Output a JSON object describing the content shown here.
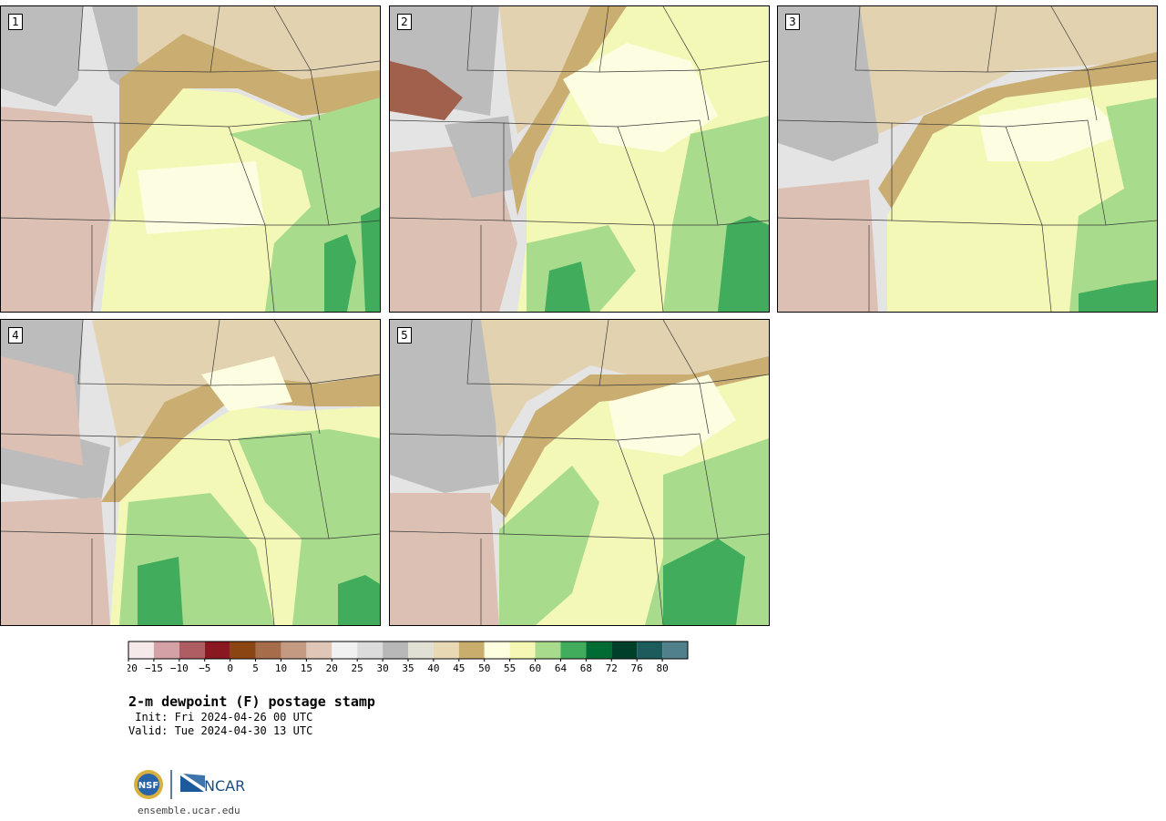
{
  "panels": [
    {
      "label": "1"
    },
    {
      "label": "2"
    },
    {
      "label": "3"
    },
    {
      "label": "4"
    },
    {
      "label": "5"
    }
  ],
  "colorbar": {
    "ticks": [
      "−20",
      "−15",
      "−10",
      "−5",
      "0",
      "5",
      "10",
      "15",
      "20",
      "25",
      "30",
      "35",
      "40",
      "45",
      "50",
      "55",
      "60",
      "64",
      "68",
      "72",
      "76",
      "80"
    ],
    "colors": [
      "#f5e9ea",
      "#d4a1a6",
      "#ae5d63",
      "#8a1820",
      "#8b4512",
      "#a66d4a",
      "#c49a82",
      "#e0c6b6",
      "#f1f1f1",
      "#dcdcdc",
      "#b8b8b8",
      "#e0e0d4",
      "#e8d9b4",
      "#c8ad6c",
      "#fefee0",
      "#f5f8b4",
      "#a8dc8c",
      "#40ac5c",
      "#006c34",
      "#00402a",
      "#1c5c5c",
      "#50808a"
    ]
  },
  "title": "2-m dewpoint (F) postage stamp",
  "init": " Init: Fri 2024-04-26 00 UTC",
  "valid": "Valid: Tue 2024-04-30 13 UTC",
  "logo": {
    "nsf": "NSF",
    "ncar": "NCAR"
  },
  "site": "ensemble.ucar.edu",
  "palette": {
    "gray": "#bcbcbc",
    "lightgray": "#e4e4e4",
    "pink": "#dcc0b4",
    "brownlight": "#e2d2b0",
    "tan": "#caad70",
    "cream": "#fdfde2",
    "yellow": "#f4f8b6",
    "lightgreen": "#a8dc8c",
    "green": "#40ac5c",
    "darkbrown": "#8b4512"
  }
}
